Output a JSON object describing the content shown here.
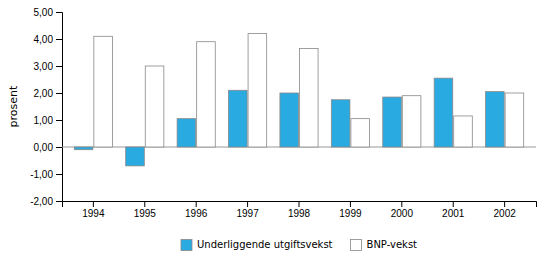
{
  "chart_data": {
    "type": "bar",
    "y_label": "prosent",
    "categories": [
      "1994",
      "1995",
      "1996",
      "1997",
      "1998",
      "1999",
      "2000",
      "2001",
      "2002"
    ],
    "series": [
      {
        "name": "Underliggende utgiftsvekst",
        "color": "#29ABE2",
        "values": [
          -0.1,
          -0.7,
          1.05,
          2.1,
          2.0,
          1.75,
          1.85,
          2.55,
          2.05
        ]
      },
      {
        "name": "BNP-vekst",
        "color": "#FFFFFF",
        "values": [
          4.1,
          3.0,
          3.9,
          4.2,
          3.65,
          1.05,
          1.9,
          1.15,
          2.0
        ]
      }
    ],
    "ylim": [
      -2.0,
      5.0
    ],
    "yticks": [
      {
        "value": -2.0,
        "label": "-2,00"
      },
      {
        "value": -1.0,
        "label": "-1,00"
      },
      {
        "value": 0.0,
        "label": "0,00"
      },
      {
        "value": 1.0,
        "label": "1,00"
      },
      {
        "value": 2.0,
        "label": "2,00"
      },
      {
        "value": 3.0,
        "label": "3,00"
      },
      {
        "value": 4.0,
        "label": "4,00"
      },
      {
        "value": 5.0,
        "label": "5,00"
      }
    ],
    "grid": false,
    "legend": "bottom"
  }
}
